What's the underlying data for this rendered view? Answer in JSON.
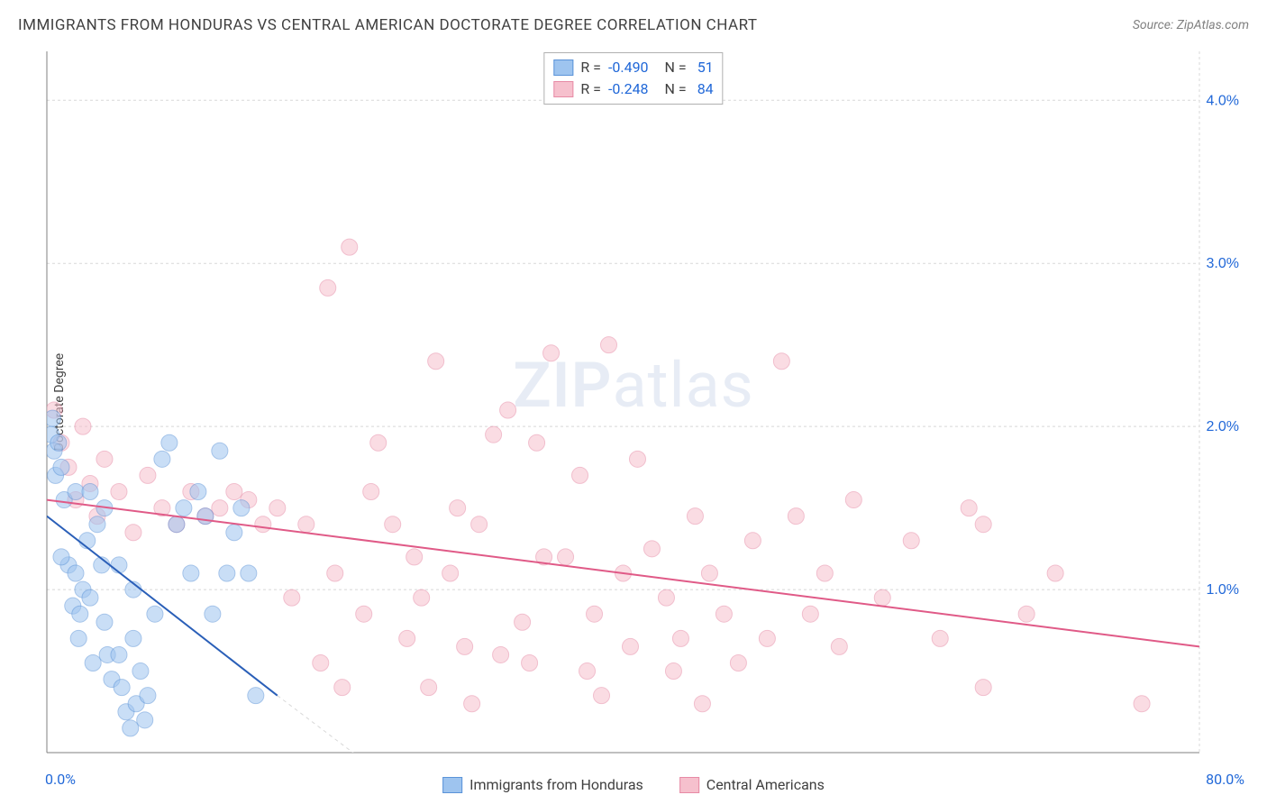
{
  "title": "IMMIGRANTS FROM HONDURAS VS CENTRAL AMERICAN DOCTORATE DEGREE CORRELATION CHART",
  "source": "Source: ZipAtlas.com",
  "ylabel": "Doctorate Degree",
  "watermark_a": "ZIP",
  "watermark_b": "atlas",
  "chart": {
    "type": "scatter",
    "xlim": [
      0,
      80
    ],
    "ylim": [
      0,
      4.3
    ],
    "yticks": [
      1.0,
      2.0,
      3.0,
      4.0
    ],
    "ytick_labels": [
      "1.0%",
      "2.0%",
      "3.0%",
      "4.0%"
    ],
    "xtick_min_label": "0.0%",
    "xtick_max_label": "80.0%",
    "grid_color": "#d8d8d8",
    "axis_color": "#808080",
    "background": "#ffffff",
    "ytick_color": "#2168d8",
    "ytick_fontsize": 16,
    "marker_radius": 9,
    "marker_opacity": 0.55,
    "line_width": 2,
    "series": [
      {
        "name": "Immigrants from Honduras",
        "fill": "#9ec4ef",
        "stroke": "#5a93d8",
        "line_color": "#2a5fb8",
        "R": "-0.490",
        "N": "51",
        "trend": {
          "x1": 0,
          "y1": 1.45,
          "x2": 16,
          "y2": 0.35
        },
        "trend_ext": {
          "x1": 16,
          "y1": 0.35,
          "x2": 22,
          "y2": -0.05
        },
        "points": [
          [
            0.3,
            1.95
          ],
          [
            0.4,
            2.05
          ],
          [
            0.5,
            1.85
          ],
          [
            0.6,
            1.7
          ],
          [
            0.8,
            1.9
          ],
          [
            1.0,
            1.75
          ],
          [
            1.2,
            1.55
          ],
          [
            1.5,
            1.15
          ],
          [
            1.8,
            0.9
          ],
          [
            2.0,
            1.1
          ],
          [
            2.2,
            0.7
          ],
          [
            2.5,
            1.0
          ],
          [
            2.8,
            1.3
          ],
          [
            3.0,
            0.95
          ],
          [
            3.5,
            1.4
          ],
          [
            3.8,
            1.15
          ],
          [
            3.2,
            0.55
          ],
          [
            4.0,
            0.8
          ],
          [
            4.2,
            0.6
          ],
          [
            4.5,
            0.45
          ],
          [
            5.0,
            1.15
          ],
          [
            5.2,
            0.4
          ],
          [
            5.5,
            0.25
          ],
          [
            5.8,
            0.15
          ],
          [
            6.0,
            0.7
          ],
          [
            6.2,
            0.3
          ],
          [
            6.5,
            0.5
          ],
          [
            6.8,
            0.2
          ],
          [
            7.0,
            0.35
          ],
          [
            7.5,
            0.85
          ],
          [
            8.0,
            1.8
          ],
          [
            8.5,
            1.9
          ],
          [
            9.0,
            1.4
          ],
          [
            9.5,
            1.5
          ],
          [
            10.0,
            1.1
          ],
          [
            10.5,
            1.6
          ],
          [
            11.0,
            1.45
          ],
          [
            11.5,
            0.85
          ],
          [
            12.0,
            1.85
          ],
          [
            12.5,
            1.1
          ],
          [
            13.0,
            1.35
          ],
          [
            13.5,
            1.5
          ],
          [
            14.0,
            1.1
          ],
          [
            14.5,
            0.35
          ],
          [
            2.0,
            1.6
          ],
          [
            3.0,
            1.6
          ],
          [
            4.0,
            1.5
          ],
          [
            5.0,
            0.6
          ],
          [
            6.0,
            1.0
          ],
          [
            1.0,
            1.2
          ],
          [
            2.3,
            0.85
          ]
        ]
      },
      {
        "name": "Central Americans",
        "fill": "#f6c0cd",
        "stroke": "#e78aa5",
        "line_color": "#e05a87",
        "R": "-0.248",
        "N": "84",
        "trend": {
          "x1": 0,
          "y1": 1.55,
          "x2": 80,
          "y2": 0.65
        },
        "points": [
          [
            0.5,
            2.1
          ],
          [
            1.0,
            1.9
          ],
          [
            1.5,
            1.75
          ],
          [
            2.0,
            1.55
          ],
          [
            2.5,
            2.0
          ],
          [
            3.0,
            1.65
          ],
          [
            3.5,
            1.45
          ],
          [
            4.0,
            1.8
          ],
          [
            5.0,
            1.6
          ],
          [
            6.0,
            1.35
          ],
          [
            7.0,
            1.7
          ],
          [
            8.0,
            1.5
          ],
          [
            9.0,
            1.4
          ],
          [
            10.0,
            1.6
          ],
          [
            11.0,
            1.45
          ],
          [
            12.0,
            1.5
          ],
          [
            13.0,
            1.6
          ],
          [
            14.0,
            1.55
          ],
          [
            15.0,
            1.4
          ],
          [
            16.0,
            1.5
          ],
          [
            17.0,
            0.95
          ],
          [
            18.0,
            1.4
          ],
          [
            19.0,
            0.55
          ],
          [
            20.0,
            1.1
          ],
          [
            21.0,
            3.1
          ],
          [
            22.0,
            0.85
          ],
          [
            23.0,
            1.9
          ],
          [
            24.0,
            1.4
          ],
          [
            25.0,
            0.7
          ],
          [
            26.0,
            0.95
          ],
          [
            26.5,
            0.4
          ],
          [
            27.0,
            2.4
          ],
          [
            28.0,
            1.1
          ],
          [
            29.0,
            0.65
          ],
          [
            29.5,
            0.3
          ],
          [
            30.0,
            1.4
          ],
          [
            31.0,
            1.95
          ],
          [
            32.0,
            2.1
          ],
          [
            33.0,
            0.8
          ],
          [
            33.5,
            0.55
          ],
          [
            34.0,
            1.9
          ],
          [
            35.0,
            2.45
          ],
          [
            36.0,
            1.2
          ],
          [
            37.0,
            1.7
          ],
          [
            38.0,
            0.85
          ],
          [
            38.5,
            0.35
          ],
          [
            39.0,
            2.5
          ],
          [
            40.0,
            1.1
          ],
          [
            40.5,
            0.65
          ],
          [
            41.0,
            1.8
          ],
          [
            42.0,
            1.25
          ],
          [
            43.0,
            0.95
          ],
          [
            44.0,
            0.7
          ],
          [
            45.0,
            1.45
          ],
          [
            45.5,
            0.3
          ],
          [
            46.0,
            1.1
          ],
          [
            47.0,
            0.85
          ],
          [
            48.0,
            0.55
          ],
          [
            49.0,
            1.3
          ],
          [
            50.0,
            0.7
          ],
          [
            51.0,
            2.4
          ],
          [
            52.0,
            1.45
          ],
          [
            53.0,
            0.85
          ],
          [
            54.0,
            1.1
          ],
          [
            55.0,
            0.65
          ],
          [
            56.0,
            1.55
          ],
          [
            58.0,
            0.95
          ],
          [
            60.0,
            1.3
          ],
          [
            62.0,
            0.7
          ],
          [
            64.0,
            1.5
          ],
          [
            65.0,
            0.4
          ],
          [
            68.0,
            0.85
          ],
          [
            70.0,
            1.1
          ],
          [
            19.5,
            2.85
          ],
          [
            20.5,
            0.4
          ],
          [
            22.5,
            1.6
          ],
          [
            25.5,
            1.2
          ],
          [
            28.5,
            1.5
          ],
          [
            31.5,
            0.6
          ],
          [
            34.5,
            1.2
          ],
          [
            37.5,
            0.5
          ],
          [
            65.0,
            1.4
          ],
          [
            76.0,
            0.3
          ],
          [
            43.5,
            0.5
          ]
        ]
      }
    ],
    "legend_bottom": [
      {
        "label": "Immigrants from Honduras",
        "fill": "#9ec4ef",
        "stroke": "#5a93d8"
      },
      {
        "label": "Central Americans",
        "fill": "#f6c0cd",
        "stroke": "#e78aa5"
      }
    ]
  }
}
